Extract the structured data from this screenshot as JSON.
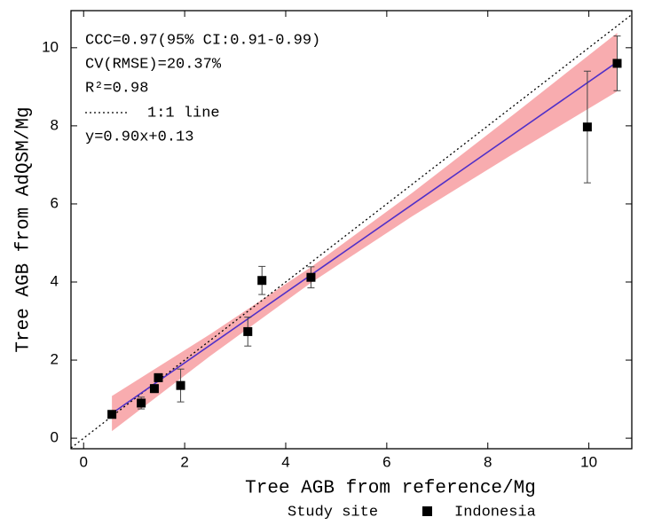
{
  "chart_data": {
    "type": "scatter",
    "x_label": "Tree AGB from reference/Mg",
    "y_label": "Tree AGB from AdQSM/Mg",
    "xlim": [
      -0.25,
      10.85
    ],
    "ylim": [
      -0.27,
      10.95
    ],
    "xticks": [
      0,
      2,
      4,
      6,
      8,
      10
    ],
    "yticks": [
      0,
      2,
      4,
      6,
      8,
      10
    ],
    "series": [
      {
        "name": "Indonesia",
        "color": "#000000",
        "x": [
          0.56,
          1.14,
          1.4,
          1.48,
          1.92,
          3.25,
          3.53,
          4.5,
          9.97,
          10.56
        ],
        "values": [
          0.61,
          0.9,
          1.27,
          1.55,
          1.35,
          2.73,
          4.04,
          4.12,
          7.97,
          9.6
        ],
        "errors": [
          0.05,
          0.15,
          0.1,
          0.1,
          0.42,
          0.37,
          0.36,
          0.27,
          1.43,
          0.7
        ]
      }
    ],
    "fit": {
      "color": "#5030c8",
      "x": [
        0.56,
        10.56
      ],
      "values": [
        0.634,
        9.634
      ]
    },
    "band": {
      "color": "#f7a3a6",
      "x": [
        0.56,
        2.5,
        4.5,
        6.5,
        8.5,
        10.56
      ],
      "lower": [
        0.18,
        2.1,
        3.98,
        5.68,
        7.28,
        8.88
      ],
      "upper": [
        1.08,
        2.66,
        4.38,
        6.28,
        8.28,
        10.38
      ]
    },
    "identity_line": {
      "label": "1:1 line",
      "style": "dotted",
      "color": "#000000"
    },
    "annotations": [
      "CCC=0.97(95% CI:0.91-0.99)",
      "CV(RMSE)=20.37%",
      "R²=0.98",
      "y=0.90x+0.13"
    ],
    "legend_title": "Study site"
  }
}
